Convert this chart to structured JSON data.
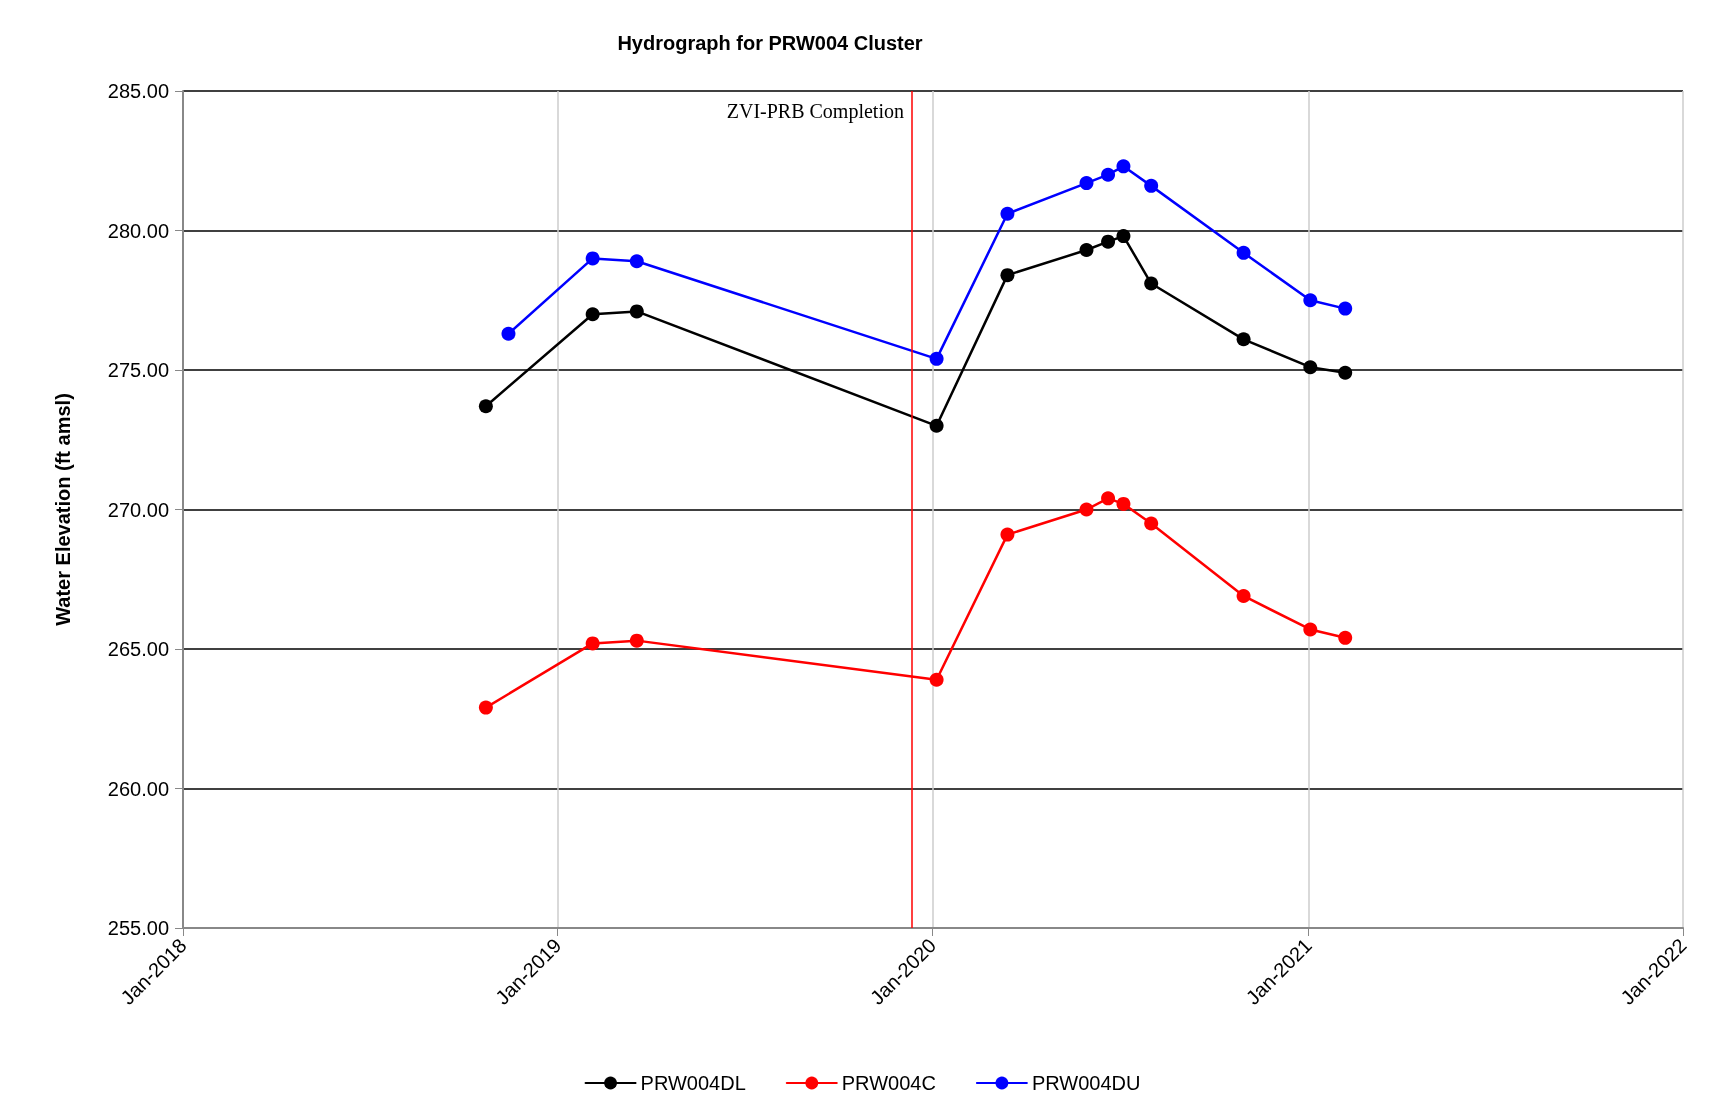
{
  "chart_data": {
    "type": "line",
    "title": "Hydrograph for PRW004 Cluster",
    "ylabel": "Water Elevation (ft amsl)",
    "xlim": [
      "2018-01-01",
      "2022-01-01"
    ],
    "xticks": [
      {
        "value": "2018-01-01",
        "label": "Jan-2018"
      },
      {
        "value": "2019-01-01",
        "label": "Jan-2019"
      },
      {
        "value": "2020-01-01",
        "label": "Jan-2020"
      },
      {
        "value": "2021-01-01",
        "label": "Jan-2021"
      },
      {
        "value": "2022-01-01",
        "label": "Jan-2022"
      }
    ],
    "ylim": [
      255,
      285
    ],
    "yticks": [
      {
        "value": 255,
        "label": "255.00"
      },
      {
        "value": 260,
        "label": "260.00"
      },
      {
        "value": 265,
        "label": "265.00"
      },
      {
        "value": 270,
        "label": "270.00"
      },
      {
        "value": 275,
        "label": "275.00"
      },
      {
        "value": 280,
        "label": "280.00"
      },
      {
        "value": 285,
        "label": "285.00"
      }
    ],
    "x": [
      "2018-10-23",
      "2019-02-04",
      "2019-03-19",
      "2020-01-05",
      "2020-03-14",
      "2020-05-30",
      "2020-06-20",
      "2020-07-05",
      "2020-08-01",
      "2020-10-30",
      "2021-01-03",
      "2021-02-06"
    ],
    "series": [
      {
        "name": "PRW004DL",
        "color": "#000000",
        "values": [
          273.7,
          277.0,
          277.1,
          273.0,
          278.4,
          279.3,
          279.6,
          279.8,
          278.1,
          276.1,
          275.1,
          274.9
        ]
      },
      {
        "name": "PRW004C",
        "color": "#ff0000",
        "values": [
          262.9,
          265.2,
          265.3,
          263.9,
          269.1,
          270.0,
          270.4,
          270.2,
          269.5,
          266.9,
          265.7,
          265.4
        ]
      },
      {
        "name": "PRW004DU",
        "color": "#0000ff",
        "x": [
          "2018-11-14",
          "2019-02-04",
          "2019-03-19",
          "2020-01-05",
          "2020-03-14",
          "2020-05-30",
          "2020-06-20",
          "2020-07-05",
          "2020-08-01",
          "2020-10-30",
          "2021-01-03",
          "2021-02-06"
        ],
        "values": [
          276.3,
          279.0,
          278.9,
          275.4,
          280.6,
          281.7,
          282.0,
          282.3,
          281.6,
          279.2,
          277.5,
          277.2
        ]
      }
    ],
    "ref_lines": [
      {
        "axis": "x",
        "value": "2019-12-12",
        "label": "ZVI-PRB Completion",
        "color": "#ff0000"
      }
    ],
    "grid": true,
    "legend": "bottom",
    "marker": "circle",
    "line_style": "solid"
  }
}
